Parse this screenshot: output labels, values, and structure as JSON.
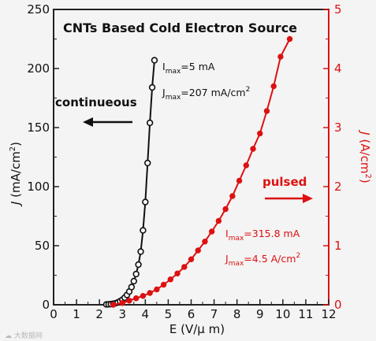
{
  "chart_data": {
    "type": "scatter",
    "title": "CNTs Based Cold Electron Source",
    "xlabel": "E (V/μ m)",
    "xlim": [
      0,
      12
    ],
    "xticks": [
      "0",
      "1",
      "2",
      "3",
      "4",
      "5",
      "6",
      "7",
      "8",
      "9",
      "10",
      "11",
      "12"
    ],
    "y_left": {
      "label": "J (mA/cm2)",
      "label_italic": "J",
      "label_rest": " (mA/cm",
      "label_sup": "2",
      "label_end": ")",
      "ylim": [
        0,
        250
      ],
      "ticks": [
        "0",
        "50",
        "100",
        "150",
        "200",
        "250"
      ],
      "color": "#111111"
    },
    "y_right": {
      "label": "J (A/cm2)",
      "label_italic": "J",
      "label_rest": " (A/cm",
      "label_sup": "2",
      "label_end": ")",
      "ylim": [
        0,
        5
      ],
      "ticks": [
        "0",
        "1",
        "2",
        "3",
        "4",
        "5"
      ],
      "color": "#dd1111"
    },
    "series": [
      {
        "name": "continueous",
        "axis": "left",
        "color": "#111111",
        "x": [
          2.3,
          2.4,
          2.5,
          2.6,
          2.7,
          2.8,
          2.9,
          3.0,
          3.1,
          3.2,
          3.3,
          3.4,
          3.5,
          3.6,
          3.7,
          3.8,
          3.9,
          4.0,
          4.1,
          4.2,
          4.3,
          4.4
        ],
        "y": [
          0.3,
          0.4,
          0.6,
          0.9,
          1.3,
          2.0,
          3.0,
          4.3,
          6.0,
          8.3,
          11.2,
          15,
          20,
          26,
          34,
          45,
          63,
          87,
          120,
          154,
          184,
          207
        ]
      },
      {
        "name": "pulsed",
        "axis": "right",
        "color": "#dd1111",
        "x": [
          2.6,
          3.0,
          3.3,
          3.6,
          3.9,
          4.2,
          4.5,
          4.8,
          5.1,
          5.4,
          5.7,
          6.0,
          6.3,
          6.6,
          6.9,
          7.2,
          7.5,
          7.8,
          8.1,
          8.4,
          8.7,
          9.0,
          9.3,
          9.6,
          9.9,
          10.3
        ],
        "y": [
          0.0,
          0.03,
          0.07,
          0.11,
          0.15,
          0.2,
          0.26,
          0.34,
          0.43,
          0.53,
          0.64,
          0.77,
          0.92,
          1.07,
          1.24,
          1.42,
          1.62,
          1.84,
          2.1,
          2.36,
          2.64,
          2.9,
          3.28,
          3.7,
          4.2,
          4.5
        ]
      }
    ],
    "annotations": {
      "left_imax": {
        "main": "I",
        "sub": "max",
        "rest": "=5 mA"
      },
      "left_jmax": {
        "main": "J",
        "sub": "max",
        "rest": "=207 mA/cm",
        "sup": "2"
      },
      "right_imax": {
        "main": "I",
        "sub": "max",
        "rest": "=315.8 mA"
      },
      "right_jmax": {
        "main": "J",
        "sub": "max",
        "rest": "=4.5 A/cm",
        "sup": "2"
      },
      "left_arrow_label": "continueous",
      "right_arrow_label": "pulsed"
    },
    "watermark": "☁ 大数据网"
  }
}
